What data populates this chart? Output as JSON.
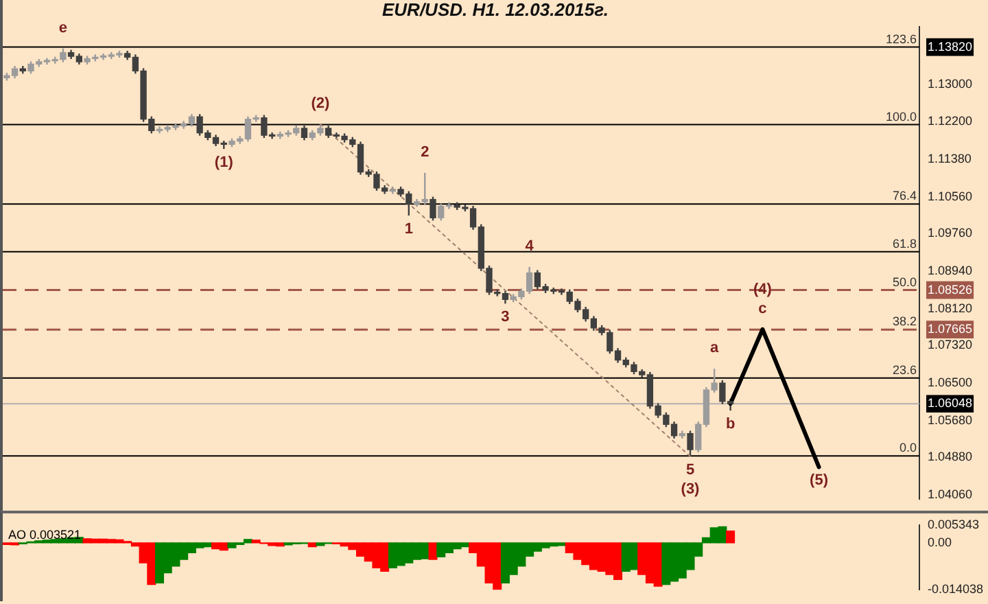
{
  "chart_data": [
    {
      "type": "candlestick",
      "title": "EUR/USD. H1. 12.03.2015г.",
      "colors": [
        "#9c9c9c",
        "#9c9c9c",
        "#404040",
        "#9c9c9c",
        "#9c9c9c",
        "#9c9c9c",
        "#9c9c9c",
        "#9c9c9c",
        "#404040",
        "#404040",
        "#9c9c9c",
        "#9c9c9c",
        "#9c9c9c",
        "#9c9c9c",
        "#9c9c9c",
        "#404040",
        "#404040",
        "#404040",
        "#404040",
        "#9c9c9c",
        "#9c9c9c",
        "#9c9c9c",
        "#9c9c9c",
        "#9c9c9c",
        "#404040",
        "#404040",
        "#404040",
        "#404040",
        "#9c9c9c",
        "#9c9c9c",
        "#9c9c9c",
        "#9c9c9c",
        "#404040",
        "#404040",
        "#9c9c9c",
        "#9c9c9c",
        "#9c9c9c",
        "#404040",
        "#9c9c9c",
        "#9c9c9c",
        "#404040",
        "#404040",
        "#404040",
        "#404040",
        "#404040",
        "#404040",
        "#404040",
        "#404040",
        "#9c9c9c",
        "#404040",
        "#404040",
        "#9c9c9c",
        "#9c9c9c",
        "#404040",
        "#9c9c9c",
        "#9c9c9c",
        "#404040",
        "#404040",
        "#404040",
        "#404040",
        "#404040",
        "#404040",
        "#404040",
        "#9c9c9c",
        "#9c9c9c",
        "#9c9c9c",
        "#404040",
        "#404040",
        "#404040",
        "#404040",
        "#404040",
        "#404040",
        "#404040",
        "#404040",
        "#404040",
        "#404040",
        "#404040",
        "#404040",
        "#404040",
        "#404040",
        "#404040",
        "#404040",
        "#404040",
        "#404040",
        "#9c9c9c",
        "#404040",
        "#9c9c9c",
        "#9c9c9c",
        "#9c9c9c",
        "#404040",
        "#404040",
        null,
        null,
        null,
        null,
        null,
        null,
        null,
        null,
        null,
        null,
        null,
        null,
        null,
        null,
        null,
        null,
        null,
        null,
        null,
        null,
        null,
        null,
        null
      ],
      "categories": [
        null,
        null,
        null,
        null,
        null,
        null,
        null,
        null,
        null,
        null,
        null,
        null,
        null,
        null,
        null,
        null,
        null,
        null,
        null,
        null,
        null,
        null,
        null,
        null,
        null,
        null,
        null,
        null,
        null,
        null,
        null,
        null,
        null,
        null,
        null,
        null,
        null,
        null,
        null,
        null,
        null,
        null,
        null,
        null,
        null,
        null,
        null,
        null,
        null,
        null,
        null,
        null,
        null,
        null,
        null,
        null,
        null,
        null,
        null,
        null,
        null,
        null,
        null,
        null,
        null,
        null,
        null,
        null,
        null,
        null,
        null,
        null,
        null,
        null,
        null,
        null,
        null,
        null,
        null,
        null,
        null,
        null,
        null,
        null,
        null,
        null,
        null,
        null,
        null,
        null,
        null,
        null,
        null,
        null,
        null,
        null,
        null,
        null,
        null,
        null,
        null,
        null,
        null,
        null,
        null,
        null,
        null,
        null,
        null,
        null,
        null,
        null,
        null,
        null
      ],
      "ohlc": [
        [
          1.1315,
          1.1326,
          1.1309,
          1.132
        ],
        [
          1.132,
          1.1341,
          1.1314,
          1.1335
        ],
        [
          1.1335,
          1.1341,
          1.1324,
          1.133
        ],
        [
          1.133,
          1.1351,
          1.1324,
          1.1345
        ],
        [
          1.1345,
          1.1356,
          1.1339,
          1.135
        ],
        [
          1.135,
          1.1358,
          1.1344,
          1.1352
        ],
        [
          1.1352,
          1.1361,
          1.1346,
          1.1355
        ],
        [
          1.1355,
          1.1379,
          1.1349,
          1.137
        ],
        [
          1.137,
          1.1376,
          1.1356,
          1.1362
        ],
        [
          1.1362,
          1.1368,
          1.1344,
          1.135
        ],
        [
          1.135,
          1.1363,
          1.1344,
          1.1357
        ],
        [
          1.1357,
          1.1366,
          1.1351,
          1.136
        ],
        [
          1.136,
          1.1368,
          1.1354,
          1.1362
        ],
        [
          1.1362,
          1.1371,
          1.1356,
          1.1365
        ],
        [
          1.1365,
          1.1374,
          1.1359,
          1.1368
        ],
        [
          1.1368,
          1.1374,
          1.1354,
          1.136
        ],
        [
          1.136,
          1.1366,
          1.1324,
          1.133
        ],
        [
          1.133,
          1.1336,
          1.1219,
          1.1225
        ],
        [
          1.1225,
          1.1231,
          1.1194,
          1.12
        ],
        [
          1.12,
          1.1209,
          1.1194,
          1.1203
        ],
        [
          1.1203,
          1.1212,
          1.1197,
          1.1207
        ],
        [
          1.1207,
          1.1216,
          1.1201,
          1.121
        ],
        [
          1.121,
          1.1221,
          1.1204,
          1.1215
        ],
        [
          1.1215,
          1.1236,
          1.1209,
          1.123
        ],
        [
          1.123,
          1.1236,
          1.1189,
          1.1195
        ],
        [
          1.1195,
          1.1201,
          1.1179,
          1.1185
        ],
        [
          1.1185,
          1.1191,
          1.1166,
          1.1172
        ],
        [
          1.1172,
          1.1178,
          1.116,
          1.117
        ],
        [
          1.117,
          1.1183,
          1.1164,
          1.1177
        ],
        [
          1.1177,
          1.1188,
          1.1171,
          1.1182
        ],
        [
          1.1182,
          1.1231,
          1.1176,
          1.1225
        ],
        [
          1.1225,
          1.1234,
          1.1219,
          1.1228
        ],
        [
          1.1228,
          1.1234,
          1.1184,
          1.119
        ],
        [
          1.119,
          1.1196,
          1.1182,
          1.1188
        ],
        [
          1.1188,
          1.1198,
          1.1182,
          1.1192
        ],
        [
          1.1192,
          1.1201,
          1.1186,
          1.1195
        ],
        [
          1.1195,
          1.1211,
          1.1189,
          1.1205
        ],
        [
          1.1205,
          1.1211,
          1.1179,
          1.1185
        ],
        [
          1.1185,
          1.1201,
          1.1179,
          1.1195
        ],
        [
          1.1195,
          1.1214,
          1.1189,
          1.1205
        ],
        [
          1.1205,
          1.1211,
          1.1184,
          1.119
        ],
        [
          1.119,
          1.1196,
          1.1182,
          1.1188
        ],
        [
          1.1188,
          1.1194,
          1.1174,
          1.118
        ],
        [
          1.118,
          1.1186,
          1.1164,
          1.117
        ],
        [
          1.117,
          1.1176,
          1.1104,
          1.111
        ],
        [
          1.111,
          1.1116,
          1.1099,
          1.1105
        ],
        [
          1.1105,
          1.1111,
          1.1069,
          1.1075
        ],
        [
          1.1075,
          1.1081,
          1.1062,
          1.1068
        ],
        [
          1.1068,
          1.1078,
          1.1062,
          1.1072
        ],
        [
          1.1072,
          1.1078,
          1.1056,
          1.1062
        ],
        [
          1.1062,
          1.1068,
          1.1015,
          1.104
        ],
        [
          1.104,
          1.1051,
          1.1034,
          1.1045
        ],
        [
          1.1045,
          1.1108,
          1.1039,
          1.105
        ],
        [
          1.105,
          1.1056,
          1.1004,
          1.101
        ],
        [
          1.101,
          1.1041,
          1.1004,
          1.1035
        ],
        [
          1.1035,
          1.1044,
          1.1029,
          1.1038
        ],
        [
          1.1038,
          1.1044,
          1.1027,
          1.1033
        ],
        [
          1.1033,
          1.1039,
          1.1024,
          1.103
        ],
        [
          1.103,
          1.1036,
          1.0984,
          1.099
        ],
        [
          1.099,
          1.0996,
          1.0894,
          1.09
        ],
        [
          1.09,
          1.0906,
          1.0842,
          1.0848
        ],
        [
          1.0848,
          1.0854,
          1.0839,
          1.0845
        ],
        [
          1.0845,
          1.0851,
          1.0823,
          1.0832
        ],
        [
          1.0832,
          1.0844,
          1.0826,
          1.0838
        ],
        [
          1.0838,
          1.0856,
          1.0832,
          1.085
        ],
        [
          1.085,
          1.0903,
          1.0844,
          1.089
        ],
        [
          1.089,
          1.0896,
          1.0854,
          1.086
        ],
        [
          1.086,
          1.0866,
          1.0846,
          1.0852
        ],
        [
          1.0852,
          1.0858,
          1.0844,
          1.085
        ],
        [
          1.085,
          1.0856,
          1.0842,
          1.0848
        ],
        [
          1.0848,
          1.0854,
          1.0822,
          1.0828
        ],
        [
          1.0828,
          1.0834,
          1.0804,
          1.081
        ],
        [
          1.081,
          1.0816,
          1.0784,
          1.079
        ],
        [
          1.079,
          1.0796,
          1.0764,
          1.077
        ],
        [
          1.077,
          1.0776,
          1.0754,
          1.076
        ],
        [
          1.076,
          1.0766,
          1.0714,
          1.072
        ],
        [
          1.072,
          1.0726,
          1.0694,
          1.07
        ],
        [
          1.07,
          1.0706,
          1.0684,
          1.069
        ],
        [
          1.069,
          1.0696,
          1.0669,
          1.0675
        ],
        [
          1.0675,
          1.068,
          1.0662,
          1.0668
        ],
        [
          1.0668,
          1.0674,
          1.0594,
          1.06
        ],
        [
          1.06,
          1.0606,
          1.0574,
          1.058
        ],
        [
          1.058,
          1.0586,
          1.0554,
          1.056
        ],
        [
          1.056,
          1.0566,
          1.0529,
          1.0535
        ],
        [
          1.0535,
          1.0546,
          1.0529,
          1.054
        ],
        [
          1.054,
          1.0546,
          1.049,
          1.0505
        ],
        [
          1.0505,
          1.0566,
          1.0499,
          1.056
        ],
        [
          1.056,
          1.0641,
          1.0554,
          1.0635
        ],
        [
          1.0635,
          1.0681,
          1.0629,
          1.065
        ],
        [
          1.065,
          1.0656,
          1.0604,
          1.061
        ],
        [
          1.061,
          1.0616,
          1.059,
          1.0605
        ],
        null,
        null,
        null,
        null,
        null,
        null,
        null,
        null,
        null,
        null,
        null,
        null,
        null,
        null,
        null,
        null,
        null,
        null,
        null,
        null,
        null,
        null,
        null
      ],
      "series": [
        {
          "type": "line",
          "color": "#a08070",
          "line_style": "dotted",
          "values": [
            null,
            null,
            null,
            null,
            null,
            null,
            null,
            null,
            null,
            null,
            null,
            null,
            null,
            null,
            null,
            null,
            null,
            null,
            null,
            null,
            null,
            null,
            null,
            null,
            null,
            null,
            null,
            null,
            null,
            null,
            null,
            null,
            null,
            null,
            null,
            null,
            null,
            null,
            null,
            1.1214,
            null,
            null,
            null,
            null,
            null,
            null,
            null,
            null,
            null,
            null,
            null,
            null,
            null,
            null,
            null,
            null,
            null,
            null,
            null,
            null,
            null,
            null,
            null,
            null,
            null,
            null,
            null,
            null,
            null,
            null,
            null,
            null,
            null,
            null,
            null,
            null,
            null,
            null,
            null,
            null,
            null,
            null,
            null,
            null,
            null,
            1.049,
            null,
            null,
            null,
            null,
            null,
            null,
            null,
            null,
            null,
            null,
            null,
            null,
            null,
            null,
            null,
            null,
            null,
            null,
            null,
            null,
            null,
            null,
            null,
            null,
            null,
            null,
            null,
            null
          ]
        },
        {
          "type": "line",
          "color": "#000000",
          "line_style": "solid",
          "values": [
            null,
            null,
            null,
            null,
            null,
            null,
            null,
            null,
            null,
            null,
            null,
            null,
            null,
            null,
            null,
            null,
            null,
            null,
            null,
            null,
            null,
            null,
            null,
            null,
            null,
            null,
            null,
            null,
            null,
            null,
            null,
            null,
            null,
            null,
            null,
            null,
            null,
            null,
            null,
            null,
            null,
            null,
            null,
            null,
            null,
            null,
            null,
            null,
            null,
            null,
            null,
            null,
            null,
            null,
            null,
            null,
            null,
            null,
            null,
            null,
            null,
            null,
            null,
            null,
            null,
            null,
            null,
            null,
            null,
            null,
            null,
            null,
            null,
            null,
            null,
            null,
            null,
            null,
            null,
            null,
            null,
            null,
            null,
            null,
            null,
            null,
            null,
            null,
            null,
            null,
            1.0605,
            null,
            null,
            null,
            1.0767,
            null,
            null,
            null,
            null,
            null,
            null,
            1.0467,
            null,
            null,
            null,
            null,
            null,
            null,
            null,
            null,
            null,
            null,
            null,
            null
          ]
        }
      ],
      "ylim": [
        1.0397,
        1.1426
      ],
      "yticks": [
        {
          "value": 1.1382,
          "label": "1.13820"
        },
        {
          "value": 1.13,
          "label": "1.13000"
        },
        {
          "value": 1.122,
          "label": "1.12200"
        },
        {
          "value": 1.1138,
          "label": "1.11380"
        },
        {
          "value": 1.1056,
          "label": "1.10560"
        },
        {
          "value": 1.0976,
          "label": "1.09760"
        },
        {
          "value": 1.0894,
          "label": "1.08940"
        },
        {
          "value": 1.08526,
          "label": "1.08526"
        },
        {
          "value": 1.0812,
          "label": "1.08120"
        },
        {
          "value": 1.07665,
          "label": "1.07665"
        },
        {
          "value": 1.0732,
          "label": "1.07320"
        },
        {
          "value": 1.065,
          "label": "1.06500"
        },
        {
          "value": 1.06048,
          "label": "1.06048"
        },
        {
          "value": 1.0568,
          "label": "1.05680"
        },
        {
          "value": 1.0488,
          "label": "1.04880"
        },
        {
          "value": 1.0406,
          "label": "1.04060"
        }
      ],
      "tick_labels": "y",
      "ref_lines": [
        {
          "axis": "y",
          "value": 1.1382,
          "color": "#000000"
        },
        {
          "axis": "y",
          "value": 1.1213,
          "color": "#000000"
        },
        {
          "axis": "y",
          "value": 1.104,
          "color": "#000000"
        },
        {
          "axis": "y",
          "value": 1.0936,
          "color": "#000000"
        },
        {
          "axis": "y",
          "value": 1.08526,
          "color": "#a0584a",
          "line_style": "dashed"
        },
        {
          "axis": "y",
          "value": 1.07665,
          "color": "#a0584a",
          "line_style": "dashed"
        },
        {
          "axis": "y",
          "value": 1.0661,
          "color": "#000000"
        },
        {
          "axis": "y",
          "value": 1.06048,
          "color": "#b0b0b0"
        },
        {
          "axis": "y",
          "value": 1.0491,
          "color": "#000000"
        }
      ],
      "annotations": [
        {
          "text": "e",
          "y": 1.1379
        },
        {
          "text": "(1)",
          "y": 1.116
        },
        {
          "text": "(2)",
          "y": 1.1214
        },
        {
          "text": "1",
          "y": 1.1015
        },
        {
          "text": "2",
          "y": 1.1108
        },
        {
          "text": "3",
          "y": 1.0823
        },
        {
          "text": "4",
          "y": 1.0903
        },
        {
          "text": "5",
          "y": 1.049
        },
        {
          "text": "(3)",
          "y": 1.049
        },
        {
          "text": "a",
          "y": 1.0681
        },
        {
          "text": "b",
          "y": 1.059
        },
        {
          "text": "c",
          "y": 1.0767
        },
        {
          "text": "(4)",
          "y": 1.0767
        },
        {
          "text": "(5)",
          "y": 1.0467
        },
        {
          "text": "123.6",
          "y": 1.1382
        },
        {
          "text": "100.0",
          "y": 1.1213
        },
        {
          "text": "76.4",
          "y": 1.104
        },
        {
          "text": "61.8",
          "y": 1.0936
        },
        {
          "text": "50.0",
          "y": 1.08526
        },
        {
          "text": "38.2",
          "y": 1.07665
        },
        {
          "text": "23.6",
          "y": 1.0661
        },
        {
          "text": "0.0",
          "y": 1.0491
        }
      ]
    },
    {
      "type": "bar",
      "categories": [
        null,
        null,
        null,
        null,
        null,
        null,
        null,
        null,
        null,
        null,
        null,
        null,
        null,
        null,
        null,
        null,
        null,
        null,
        null,
        null,
        null,
        null,
        null,
        null,
        null,
        null,
        null,
        null,
        null,
        null,
        null,
        null,
        null,
        null,
        null,
        null,
        null,
        null,
        null,
        null,
        null,
        null,
        null,
        null,
        null,
        null,
        null,
        null,
        null,
        null,
        null,
        null,
        null,
        null,
        null,
        null,
        null,
        null,
        null,
        null,
        null,
        null,
        null,
        null,
        null,
        null,
        null,
        null,
        null,
        null,
        null,
        null,
        null,
        null,
        null,
        null,
        null,
        null,
        null,
        null,
        null,
        null,
        null,
        null,
        null,
        null,
        null,
        null,
        null,
        null,
        null,
        null,
        null,
        null,
        null,
        null,
        null,
        null,
        null,
        null,
        null,
        null,
        null,
        null,
        null,
        null,
        null,
        null,
        null,
        null,
        null,
        null,
        null,
        null
      ],
      "values": [
        -0.0005,
        -0.0006,
        -0.0003,
        0.0003,
        0.0006,
        0.0008,
        0.001,
        0.0012,
        0.0015,
        0.0016,
        0.0012,
        0.0011,
        0.0011,
        0.001,
        0.0009,
        0.0004,
        -0.001,
        -0.006,
        -0.0125,
        -0.012,
        -0.009,
        -0.007,
        -0.005,
        -0.003,
        -0.0015,
        -0.0012,
        -0.0018,
        -0.0022,
        -0.0015,
        -0.0005,
        0.001,
        0.0008,
        -0.0002,
        -0.0008,
        -0.001,
        -0.0006,
        -0.0003,
        -0.0002,
        -0.0012,
        -0.0008,
        -0.0002,
        -0.0003,
        -0.001,
        -0.002,
        -0.004,
        -0.0055,
        -0.0075,
        -0.0085,
        -0.0075,
        -0.0068,
        -0.006,
        -0.005,
        -0.0048,
        -0.005,
        -0.0042,
        -0.003,
        -0.0018,
        -0.0012,
        -0.003,
        -0.007,
        -0.012,
        -0.014,
        -0.012,
        -0.0095,
        -0.007,
        -0.004,
        -0.0025,
        -0.0015,
        -0.001,
        -0.0008,
        -0.003,
        -0.005,
        -0.0065,
        -0.008,
        -0.0085,
        -0.0095,
        -0.011,
        -0.0085,
        -0.008,
        -0.0095,
        -0.012,
        -0.013,
        -0.0125,
        -0.0115,
        -0.0105,
        -0.008,
        -0.004,
        0.0015,
        0.0045,
        0.0048,
        0.0035,
        null,
        null,
        null,
        null,
        null,
        null,
        null,
        null,
        null,
        null,
        null,
        null,
        null,
        null,
        null,
        null,
        null,
        null,
        null,
        null,
        null,
        null,
        null
      ],
      "colors": [
        "#ff0000",
        "#ff0000",
        "#008000",
        "#008000",
        "#008000",
        "#008000",
        "#008000",
        "#008000",
        "#008000",
        "#008000",
        "#ff0000",
        "#ff0000",
        "#ff0000",
        "#ff0000",
        "#ff0000",
        "#ff0000",
        "#ff0000",
        "#ff0000",
        "#ff0000",
        "#008000",
        "#008000",
        "#008000",
        "#008000",
        "#008000",
        "#008000",
        "#008000",
        "#ff0000",
        "#ff0000",
        "#008000",
        "#008000",
        "#008000",
        "#ff0000",
        "#ff0000",
        "#ff0000",
        "#ff0000",
        "#008000",
        "#008000",
        "#008000",
        "#ff0000",
        "#008000",
        "#008000",
        "#ff0000",
        "#ff0000",
        "#ff0000",
        "#ff0000",
        "#ff0000",
        "#ff0000",
        "#ff0000",
        "#008000",
        "#008000",
        "#008000",
        "#008000",
        "#008000",
        "#ff0000",
        "#008000",
        "#008000",
        "#008000",
        "#008000",
        "#ff0000",
        "#ff0000",
        "#ff0000",
        "#ff0000",
        "#008000",
        "#008000",
        "#008000",
        "#008000",
        "#008000",
        "#008000",
        "#008000",
        "#008000",
        "#ff0000",
        "#ff0000",
        "#ff0000",
        "#ff0000",
        "#ff0000",
        "#ff0000",
        "#ff0000",
        "#008000",
        "#008000",
        "#ff0000",
        "#ff0000",
        "#ff0000",
        "#008000",
        "#008000",
        "#008000",
        "#008000",
        "#008000",
        "#008000",
        "#008000",
        "#008000",
        "#ff0000",
        null,
        null,
        null,
        null,
        null,
        null,
        null,
        null,
        null,
        null,
        null,
        null,
        null,
        null,
        null,
        null,
        null,
        null,
        null,
        null,
        null,
        null,
        null
      ],
      "ylim": [
        -0.014038,
        0.005343
      ],
      "yticks": [
        {
          "value": 0.005343,
          "label": "0.005343"
        },
        {
          "value": 0,
          "label": "0.00"
        },
        {
          "value": -0.014038,
          "label": "-0.014038"
        }
      ],
      "tick_labels": "y",
      "annotations": [
        "AO 0.003521"
      ]
    }
  ]
}
